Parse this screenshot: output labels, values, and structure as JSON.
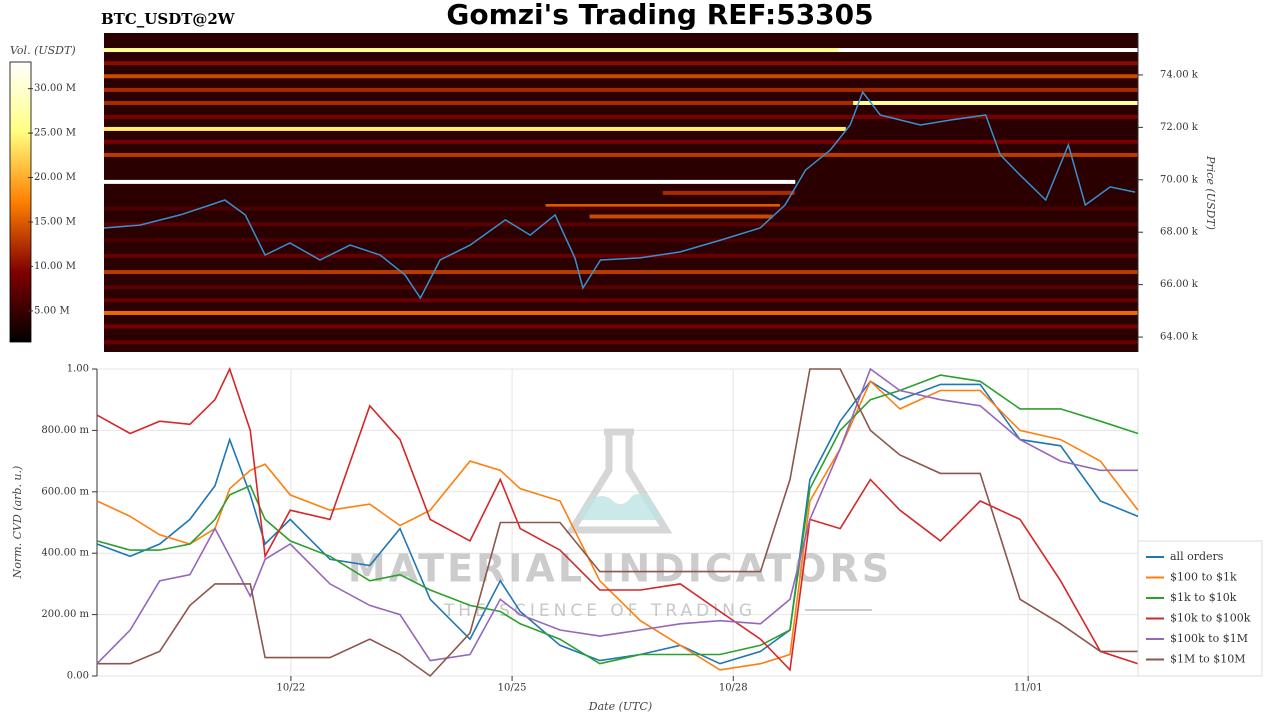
{
  "title": "Gomzi's Trading REF:53305",
  "symbol": "BTC_USDT@2W",
  "watermark": {
    "brand": "MATERIAL INDICATORS",
    "tagline": "THE SCIENCE OF TRADING"
  },
  "chart_data": [
    {
      "type": "heatmap",
      "colorbar_label": "Vol. (USDT)",
      "clim": [
        1500000,
        33000000
      ],
      "colorbar_ticks": [
        {
          "value": 5000000,
          "label": "5.00 M"
        },
        {
          "value": 10000000,
          "label": "10.00 M"
        },
        {
          "value": 15000000,
          "label": "15.00 M"
        },
        {
          "value": 20000000,
          "label": "20.00 M"
        },
        {
          "value": 25000000,
          "label": "25.00 M"
        },
        {
          "value": 30000000,
          "label": "30.00 M"
        }
      ],
      "colormap": "afmhot",
      "y_label": "Price (USDT)",
      "ylim": [
        63430,
        75600
      ],
      "yticks": [
        {
          "value": 64000,
          "label": "64.00 k"
        },
        {
          "value": 66000,
          "label": "66.00 k"
        },
        {
          "value": 68000,
          "label": "68.00 k"
        },
        {
          "value": 70000,
          "label": "70.00 k"
        },
        {
          "value": 72000,
          "label": "72.00 k"
        },
        {
          "value": 74000,
          "label": "74.00 k"
        }
      ],
      "xlim": [
        19.37,
        33.49
      ],
      "levels": [
        {
          "price": 74950,
          "volume": 26000000,
          "start": 19.37,
          "end": 29.4
        },
        {
          "price": 74950,
          "volume": 33000000,
          "start": 29.4,
          "end": 33.49
        },
        {
          "price": 74450,
          "volume": 10000000,
          "start": 19.37,
          "end": 33.49
        },
        {
          "price": 73950,
          "volume": 14000000,
          "start": 19.37,
          "end": 33.49
        },
        {
          "price": 73430,
          "volume": 12000000,
          "start": 19.37,
          "end": 33.49
        },
        {
          "price": 72930,
          "volume": 12000000,
          "start": 19.37,
          "end": 29.6
        },
        {
          "price": 72930,
          "volume": 27000000,
          "start": 29.6,
          "end": 33.49
        },
        {
          "price": 72400,
          "volume": 9000000,
          "start": 19.37,
          "end": 33.49
        },
        {
          "price": 71940,
          "volume": 24000000,
          "start": 19.37,
          "end": 29.5
        },
        {
          "price": 71450,
          "volume": 9000000,
          "start": 19.37,
          "end": 33.49
        },
        {
          "price": 70950,
          "volume": 13000000,
          "start": 19.37,
          "end": 33.49
        },
        {
          "price": 69920,
          "volume": 33000000,
          "start": 19.37,
          "end": 28.81
        },
        {
          "price": 69500,
          "volume": 12000000,
          "start": 27.0,
          "end": 28.8
        },
        {
          "price": 69000,
          "volume": 15000000,
          "start": 25.4,
          "end": 28.6
        },
        {
          "price": 68900,
          "volume": 6000000,
          "start": 19.37,
          "end": 33.49
        },
        {
          "price": 68600,
          "volume": 14000000,
          "start": 26.0,
          "end": 28.5
        },
        {
          "price": 68300,
          "volume": 7000000,
          "start": 19.37,
          "end": 33.49
        },
        {
          "price": 67700,
          "volume": 6000000,
          "start": 19.37,
          "end": 33.49
        },
        {
          "price": 67100,
          "volume": 8000000,
          "start": 19.37,
          "end": 33.49
        },
        {
          "price": 66480,
          "volume": 13000000,
          "start": 19.37,
          "end": 33.49
        },
        {
          "price": 65900,
          "volume": 7000000,
          "start": 19.37,
          "end": 33.49
        },
        {
          "price": 65400,
          "volume": 8000000,
          "start": 19.37,
          "end": 33.49
        },
        {
          "price": 64920,
          "volume": 16000000,
          "start": 19.37,
          "end": 33.49
        },
        {
          "price": 64400,
          "volume": 9000000,
          "start": 19.37,
          "end": 33.49
        },
        {
          "price": 63800,
          "volume": 8000000,
          "start": 19.37,
          "end": 33.49
        }
      ],
      "price": {
        "color": "#3a8fd0",
        "x": [
          19.37,
          19.86,
          20.41,
          20.82,
          21.02,
          21.3,
          21.57,
          21.91,
          22.32,
          22.73,
          23.14,
          23.48,
          23.69,
          23.96,
          24.37,
          24.85,
          25.19,
          25.53,
          25.8,
          25.91,
          26.15,
          26.69,
          27.24,
          27.79,
          28.33,
          28.67,
          28.95,
          29.29,
          29.56,
          29.73,
          29.97,
          30.52,
          30.93,
          31.41,
          31.61,
          31.88,
          32.23,
          32.54,
          32.77,
          33.11,
          33.45
        ],
        "values": [
          68160,
          68270,
          68660,
          69040,
          69230,
          68660,
          67130,
          67590,
          66940,
          67510,
          67130,
          66370,
          65490,
          66940,
          67510,
          68470,
          67890,
          68660,
          67020,
          65870,
          66940,
          67020,
          67250,
          67700,
          68160,
          69040,
          70370,
          71140,
          72090,
          73350,
          72470,
          72090,
          72280,
          72470,
          70950,
          70180,
          69230,
          71330,
          69040,
          69730,
          69530
        ]
      }
    },
    {
      "type": "line",
      "y_label": "Norm. CVD (arb. u.)",
      "x_label": "Date (UTC)",
      "xlim": [
        19.37,
        33.49
      ],
      "xticks": [
        {
          "value": 22,
          "label": "10/22"
        },
        {
          "value": 25,
          "label": "10/25"
        },
        {
          "value": 28,
          "label": "10/28"
        },
        {
          "value": 32,
          "label": "11/01"
        }
      ],
      "ylim": [
        0,
        1
      ],
      "yticks": [
        {
          "value": 0,
          "label": "0.00"
        },
        {
          "value": 0.2,
          "label": "200.00 m"
        },
        {
          "value": 0.4,
          "label": "400.00 m"
        },
        {
          "value": 0.6,
          "label": "600.00 m"
        },
        {
          "value": 0.8,
          "label": "800.00 m"
        },
        {
          "value": 1,
          "label": "1.00"
        }
      ],
      "grid": true,
      "legend": "lower right",
      "x": [
        19.37,
        19.82,
        20.22,
        20.63,
        20.97,
        21.17,
        21.45,
        21.65,
        21.99,
        22.53,
        23.07,
        23.48,
        23.89,
        24.43,
        24.84,
        25.11,
        25.65,
        26.19,
        26.74,
        27.28,
        27.82,
        28.37,
        28.77,
        29.04,
        29.45,
        29.86,
        30.26,
        30.81,
        31.35,
        31.89,
        32.44,
        32.98,
        33.49
      ],
      "series": [
        {
          "name": "all orders",
          "color": "#1f77b4",
          "values": [
            0.43,
            0.39,
            0.43,
            0.51,
            0.62,
            0.77,
            0.59,
            0.43,
            0.51,
            0.38,
            0.36,
            0.48,
            0.25,
            0.12,
            0.31,
            0.21,
            0.1,
            0.05,
            0.07,
            0.1,
            0.04,
            0.08,
            0.15,
            0.64,
            0.83,
            0.96,
            0.9,
            0.95,
            0.95,
            0.77,
            0.75,
            0.57,
            0.52
          ]
        },
        {
          "name": "$100 to $1k",
          "color": "#ff7f0e",
          "values": [
            0.57,
            0.52,
            0.46,
            0.43,
            0.48,
            0.61,
            0.67,
            0.69,
            0.59,
            0.54,
            0.56,
            0.49,
            0.54,
            0.7,
            0.67,
            0.61,
            0.57,
            0.31,
            0.18,
            0.1,
            0.02,
            0.04,
            0.07,
            0.57,
            0.74,
            0.96,
            0.87,
            0.93,
            0.93,
            0.8,
            0.77,
            0.7,
            0.54
          ]
        },
        {
          "name": "$1k to $10k",
          "color": "#2ca02c",
          "values": [
            0.44,
            0.41,
            0.41,
            0.43,
            0.51,
            0.59,
            0.62,
            0.51,
            0.44,
            0.39,
            0.31,
            0.33,
            0.28,
            0.23,
            0.21,
            0.17,
            0.12,
            0.04,
            0.07,
            0.07,
            0.07,
            0.1,
            0.15,
            0.61,
            0.8,
            0.9,
            0.93,
            0.98,
            0.96,
            0.87,
            0.87,
            0.83,
            0.79
          ]
        },
        {
          "name": "$10k to $100k",
          "color": "#d62728",
          "values": [
            0.85,
            0.79,
            0.83,
            0.82,
            0.9,
            1.0,
            0.8,
            0.39,
            0.54,
            0.51,
            0.88,
            0.77,
            0.51,
            0.44,
            0.64,
            0.48,
            0.41,
            0.28,
            0.28,
            0.3,
            0.21,
            0.12,
            0.02,
            0.51,
            0.48,
            0.64,
            0.54,
            0.44,
            0.57,
            0.51,
            0.31,
            0.08,
            0.04
          ]
        },
        {
          "name": "$100k to $1M",
          "color": "#9467bd",
          "values": [
            0.04,
            0.15,
            0.31,
            0.33,
            0.48,
            0.39,
            0.26,
            0.38,
            0.43,
            0.3,
            0.23,
            0.2,
            0.05,
            0.07,
            0.25,
            0.2,
            0.15,
            0.13,
            0.15,
            0.17,
            0.18,
            0.17,
            0.25,
            0.51,
            0.74,
            1.0,
            0.93,
            0.9,
            0.88,
            0.77,
            0.7,
            0.67,
            0.67
          ]
        },
        {
          "name": "$1M to $10M",
          "color": "#8c564b",
          "values": [
            0.04,
            0.04,
            0.08,
            0.23,
            0.3,
            0.3,
            0.3,
            0.06,
            0.06,
            0.06,
            0.12,
            0.07,
            0.0,
            0.14,
            0.5,
            0.5,
            0.5,
            0.34,
            0.34,
            0.34,
            0.34,
            0.34,
            0.64,
            1.0,
            1.0,
            0.8,
            0.72,
            0.66,
            0.66,
            0.25,
            0.17,
            0.08,
            0.08
          ]
        }
      ]
    }
  ]
}
